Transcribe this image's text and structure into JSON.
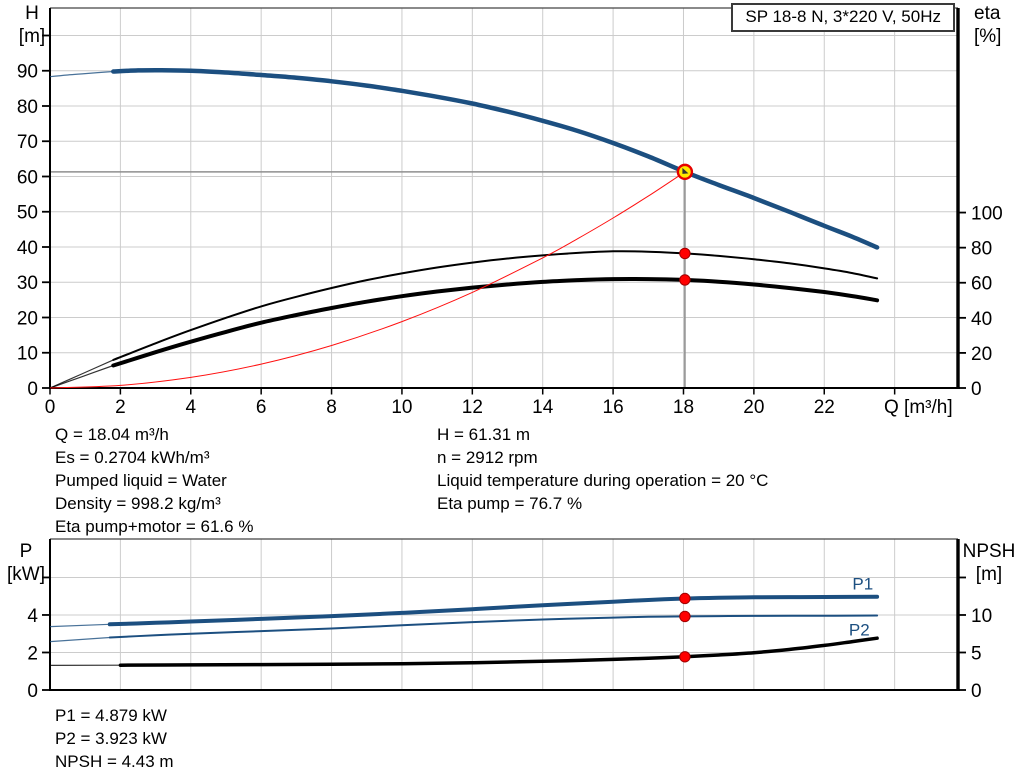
{
  "pump_label": "SP 18-8 N, 3*220 V, 50Hz",
  "info_top_left": [
    "Q = 18.04 m³/h",
    "Es = 0.2704 kWh/m³",
    "Pumped liquid = Water",
    "Density = 998.2 kg/m³",
    "Eta pump+motor = 61.6 %"
  ],
  "info_top_right": [
    "H = 61.31 m",
    "n = 2912 rpm",
    "Liquid temperature during operation = 20 °C",
    "Eta pump = 76.7 %"
  ],
  "info_bottom": [
    "P1 = 4.879 kW",
    "P2 = 3.923 kW",
    "NPSH = 4.43 m"
  ],
  "axis_titles": {
    "top_left": [
      "H",
      "[m]"
    ],
    "top_right": [
      "eta",
      "[%]"
    ],
    "bottom_left": [
      "P",
      "[kW]"
    ],
    "bottom_right": [
      "NPSH",
      "[m]"
    ],
    "x": "Q [m³/h]"
  },
  "colors": {
    "blue": "#1c4f80",
    "black": "#000000",
    "red": "#ff1010",
    "grid": "#cccccc",
    "crosshair": "#8f8f8f",
    "frame": "#000000",
    "frame_top": "#444444",
    "marker_red": "#ff0000",
    "marker_red_stroke": "#a00000",
    "marker_yellow": "#ffe800",
    "marker_yellow_stroke": "#e60000"
  },
  "chart_data": [
    {
      "id": "head-efficiency-chart",
      "type": "line",
      "title": "SP 18-8 N, 3*220 V, 50Hz",
      "x": {
        "label": "Q [m³/h]",
        "range": [
          0,
          25.8
        ],
        "ticks": [
          0,
          2,
          4,
          6,
          8,
          10,
          12,
          14,
          16,
          18,
          20,
          22
        ],
        "unlabeled_ticks": [
          24
        ],
        "grid": [
          2,
          4,
          6,
          8,
          10,
          12,
          14,
          16,
          18,
          20,
          22,
          24
        ],
        "show_labels": true,
        "show_tick_marks": true
      },
      "left_axis": {
        "label": "H [m]",
        "range": [
          0,
          107.8
        ],
        "ticks": [
          0,
          10,
          20,
          30,
          40,
          50,
          60,
          70,
          80,
          90
        ],
        "unlabeled_ticks": [
          100
        ],
        "grid": [
          10,
          20,
          30,
          40,
          50,
          60,
          70,
          80,
          90,
          100
        ]
      },
      "right_axis": {
        "label": "eta [%]",
        "range": [
          0,
          216.6
        ],
        "ticks": [
          0,
          20,
          40,
          60,
          80,
          100
        ],
        "unlabeled_ticks": []
      },
      "series": [
        {
          "name": "eta-pump",
          "axis": "right",
          "color": "black",
          "width": 2,
          "thin_until": 1.8,
          "points": [
            [
              0,
              0
            ],
            [
              0.9,
              8
            ],
            [
              1.8,
              16
            ],
            [
              3,
              25.5
            ],
            [
              4,
              33
            ],
            [
              5,
              40
            ],
            [
              6,
              46.5
            ],
            [
              7,
              52
            ],
            [
              8,
              57
            ],
            [
              9,
              61.5
            ],
            [
              10,
              65.3
            ],
            [
              11,
              68.7
            ],
            [
              12,
              71.5
            ],
            [
              13,
              73.8
            ],
            [
              14,
              75.6
            ],
            [
              15,
              77
            ],
            [
              16,
              77.9
            ],
            [
              17,
              77.7
            ],
            [
              18.04,
              76.7
            ],
            [
              19,
              75.3
            ],
            [
              20,
              73.4
            ],
            [
              21,
              71.1
            ],
            [
              22,
              68.2
            ],
            [
              22.8,
              65.5
            ],
            [
              23.5,
              62.5
            ]
          ]
        },
        {
          "name": "eta-pump-motor",
          "axis": "right",
          "color": "black",
          "width": 4,
          "thin_until": 1.8,
          "points": [
            [
              0,
              0
            ],
            [
              0.9,
              6.4
            ],
            [
              1.8,
              12.8
            ],
            [
              3,
              20.4
            ],
            [
              4,
              26.4
            ],
            [
              5,
              32
            ],
            [
              6,
              37.2
            ],
            [
              7,
              41.6
            ],
            [
              8,
              45.6
            ],
            [
              9,
              49.2
            ],
            [
              10,
              52.3
            ],
            [
              11,
              55
            ],
            [
              12,
              57.2
            ],
            [
              13,
              59
            ],
            [
              14,
              60.5
            ],
            [
              15,
              61.5
            ],
            [
              16,
              62.1
            ],
            [
              17,
              62.1
            ],
            [
              18.04,
              61.6
            ],
            [
              19,
              60.6
            ],
            [
              20,
              59
            ],
            [
              21,
              57
            ],
            [
              22,
              54.7
            ],
            [
              22.8,
              52.4
            ],
            [
              23.5,
              50
            ]
          ]
        },
        {
          "name": "system-curve",
          "axis": "left",
          "color": "red",
          "width": 1,
          "points": [
            [
              0,
              0
            ],
            [
              2,
              0.75
            ],
            [
              4,
              3.01
            ],
            [
              6,
              6.78
            ],
            [
              8,
              12.06
            ],
            [
              10,
              18.84
            ],
            [
              12,
              27.13
            ],
            [
              14,
              36.92
            ],
            [
              15,
              42.39
            ],
            [
              16,
              48.23
            ],
            [
              17,
              54.45
            ],
            [
              18.04,
              61.31
            ]
          ]
        },
        {
          "name": "head",
          "axis": "left",
          "color": "blue",
          "width": 4.5,
          "thin_until": 1.8,
          "points": [
            [
              0,
              88.3
            ],
            [
              0.5,
              88.8
            ],
            [
              1,
              89.2
            ],
            [
              1.8,
              89.8
            ],
            [
              2.5,
              90.1
            ],
            [
              3,
              90.15
            ],
            [
              4,
              90
            ],
            [
              5,
              89.5
            ],
            [
              6,
              88.8
            ],
            [
              7,
              88
            ],
            [
              8,
              87
            ],
            [
              9,
              85.8
            ],
            [
              10,
              84.3
            ],
            [
              11,
              82.6
            ],
            [
              12,
              80.7
            ],
            [
              13,
              78.4
            ],
            [
              14,
              75.8
            ],
            [
              15,
              72.9
            ],
            [
              16,
              69.5
            ],
            [
              17,
              65.7
            ],
            [
              18.04,
              61.31
            ],
            [
              19,
              57.6
            ],
            [
              20,
              53.9
            ],
            [
              21,
              50
            ],
            [
              22,
              46
            ],
            [
              22.8,
              42.9
            ],
            [
              23.5,
              39.9
            ]
          ]
        }
      ],
      "crosshair": {
        "q": 18.04,
        "value": 61.31
      },
      "markers": [
        {
          "name": "duty-point-marker",
          "kind": "duty",
          "axis": "left",
          "q": 18.04,
          "v": 61.31
        },
        {
          "name": "eta-pump-marker",
          "kind": "dot",
          "axis": "right",
          "q": 18.04,
          "v": 76.7
        },
        {
          "name": "eta-pump-motor-marker",
          "kind": "dot",
          "axis": "right",
          "q": 18.04,
          "v": 61.6
        }
      ],
      "annotations": []
    },
    {
      "id": "power-npsh-chart",
      "type": "line",
      "x": {
        "label": "",
        "range": [
          0,
          25.8
        ],
        "ticks": [],
        "unlabeled_ticks": [],
        "grid": [
          2,
          4,
          6,
          8,
          10,
          12,
          14,
          16,
          18,
          20,
          22,
          24
        ],
        "show_labels": false,
        "show_tick_marks": false
      },
      "left_axis": {
        "label": "P [kW]",
        "range": [
          0,
          8.05
        ],
        "ticks": [
          0,
          2,
          4
        ],
        "unlabeled_ticks": [
          6
        ],
        "grid": [
          2,
          4,
          6
        ]
      },
      "right_axis": {
        "label": "NPSH [m]",
        "range": [
          0,
          20.13
        ],
        "ticks": [
          0,
          5,
          10
        ],
        "unlabeled_ticks": [
          15
        ]
      },
      "series": [
        {
          "name": "P1",
          "axis": "left",
          "color": "blue",
          "width": 4,
          "thin_until": 1.7,
          "points": [
            [
              0,
              3.38
            ],
            [
              1.7,
              3.5
            ],
            [
              3,
              3.58
            ],
            [
              4,
              3.65
            ],
            [
              6,
              3.79
            ],
            [
              8,
              3.94
            ],
            [
              10,
              4.11
            ],
            [
              12,
              4.31
            ],
            [
              14,
              4.52
            ],
            [
              16,
              4.71
            ],
            [
              17,
              4.8
            ],
            [
              18.04,
              4.879
            ],
            [
              19,
              4.92
            ],
            [
              20,
              4.94
            ],
            [
              21,
              4.95
            ],
            [
              22,
              4.96
            ],
            [
              23.5,
              4.97
            ]
          ]
        },
        {
          "name": "P2",
          "axis": "left",
          "color": "blue",
          "width": 2,
          "thin_until": 1.7,
          "points": [
            [
              0,
              2.58
            ],
            [
              1.7,
              2.8
            ],
            [
              3,
              2.92
            ],
            [
              4,
              3.0
            ],
            [
              6,
              3.14
            ],
            [
              8,
              3.28
            ],
            [
              10,
              3.45
            ],
            [
              12,
              3.62
            ],
            [
              14,
              3.76
            ],
            [
              16,
              3.86
            ],
            [
              17,
              3.9
            ],
            [
              18.04,
              3.923
            ],
            [
              19,
              3.94
            ],
            [
              20,
              3.95
            ],
            [
              22,
              3.96
            ],
            [
              23.5,
              3.97
            ]
          ]
        },
        {
          "name": "NPSH",
          "axis": "right",
          "color": "black",
          "width": 3.5,
          "thin_until": 2,
          "points": [
            [
              0,
              3.28
            ],
            [
              2,
              3.31
            ],
            [
              4,
              3.34
            ],
            [
              6,
              3.38
            ],
            [
              8,
              3.43
            ],
            [
              10,
              3.51
            ],
            [
              12,
              3.63
            ],
            [
              14,
              3.82
            ],
            [
              16,
              4.08
            ],
            [
              17,
              4.24
            ],
            [
              18.04,
              4.43
            ],
            [
              19,
              4.67
            ],
            [
              20,
              4.97
            ],
            [
              21,
              5.4
            ],
            [
              22,
              5.95
            ],
            [
              22.8,
              6.45
            ],
            [
              23.5,
              6.9
            ]
          ]
        }
      ],
      "markers": [
        {
          "name": "p1-marker",
          "kind": "dot",
          "axis": "left",
          "q": 18.04,
          "v": 4.879
        },
        {
          "name": "p2-marker",
          "kind": "dot",
          "axis": "left",
          "q": 18.04,
          "v": 3.923
        },
        {
          "name": "npsh-marker",
          "kind": "dot",
          "axis": "right",
          "q": 18.04,
          "v": 4.43
        }
      ],
      "annotations": [
        {
          "text": "P1",
          "q": 22.8,
          "v": 5.35
        },
        {
          "text": "P2",
          "q": 22.7,
          "v": 2.9
        }
      ]
    }
  ]
}
